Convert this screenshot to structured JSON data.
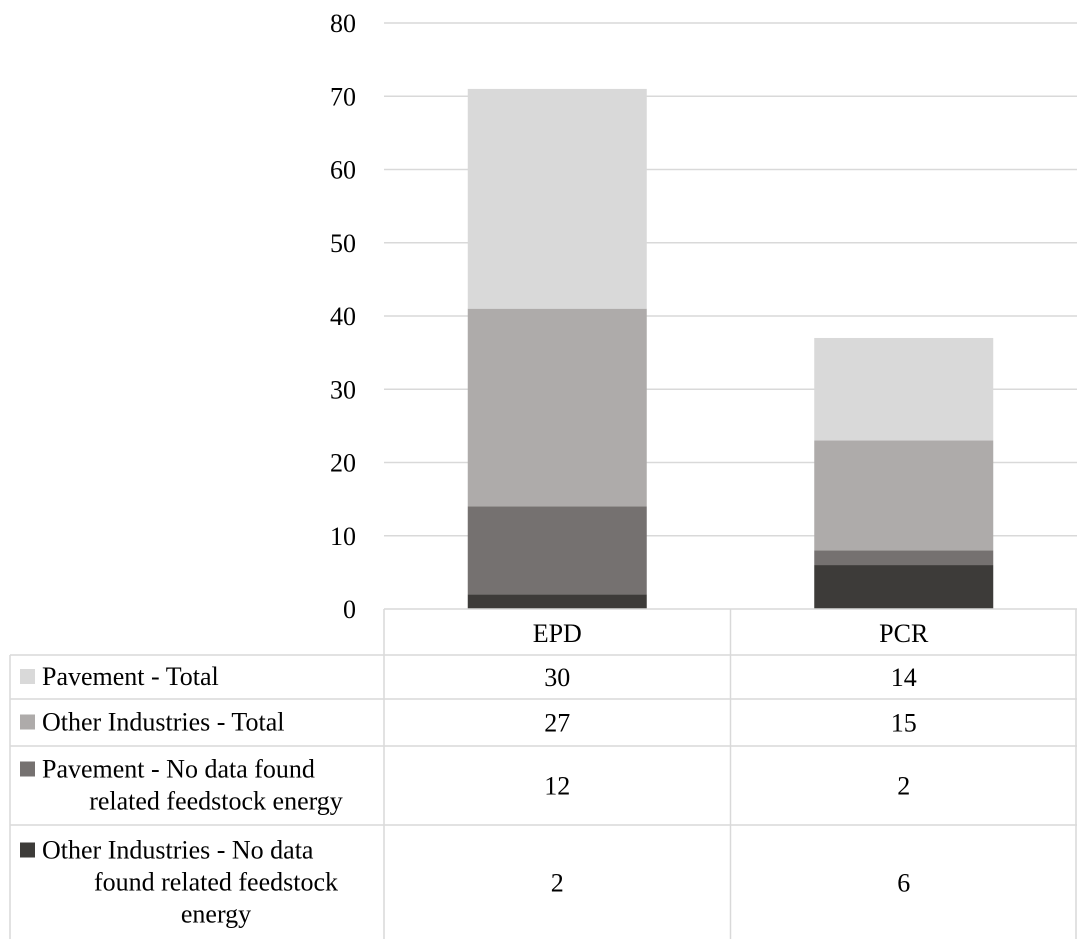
{
  "chart_data": {
    "type": "bar",
    "stacked": true,
    "title": "",
    "xlabel": "",
    "ylabel": "",
    "ylim": [
      0,
      80
    ],
    "yticks": [
      0,
      10,
      20,
      30,
      40,
      50,
      60,
      70,
      80
    ],
    "grid": true,
    "legend": "data-table-bottom",
    "categories": [
      "EPD",
      "PCR"
    ],
    "series": [
      {
        "name": "Other Industries - No data found related feedstock energy",
        "color": "#3d3b39",
        "values": [
          2,
          6
        ]
      },
      {
        "name": "Pavement - No data found related feedstock energy",
        "color": "#757170",
        "values": [
          12,
          2
        ]
      },
      {
        "name": "Other Industries - Total",
        "color": "#aeabaa",
        "values": [
          27,
          15
        ]
      },
      {
        "name": "Pavement - Total",
        "color": "#d9d9d9",
        "values": [
          30,
          14
        ]
      }
    ],
    "table_order": [
      "Pavement - Total",
      "Other Industries - Total",
      "Pavement - No data found related feedstock energy",
      "Other Industries - No data found related feedstock energy"
    ]
  }
}
